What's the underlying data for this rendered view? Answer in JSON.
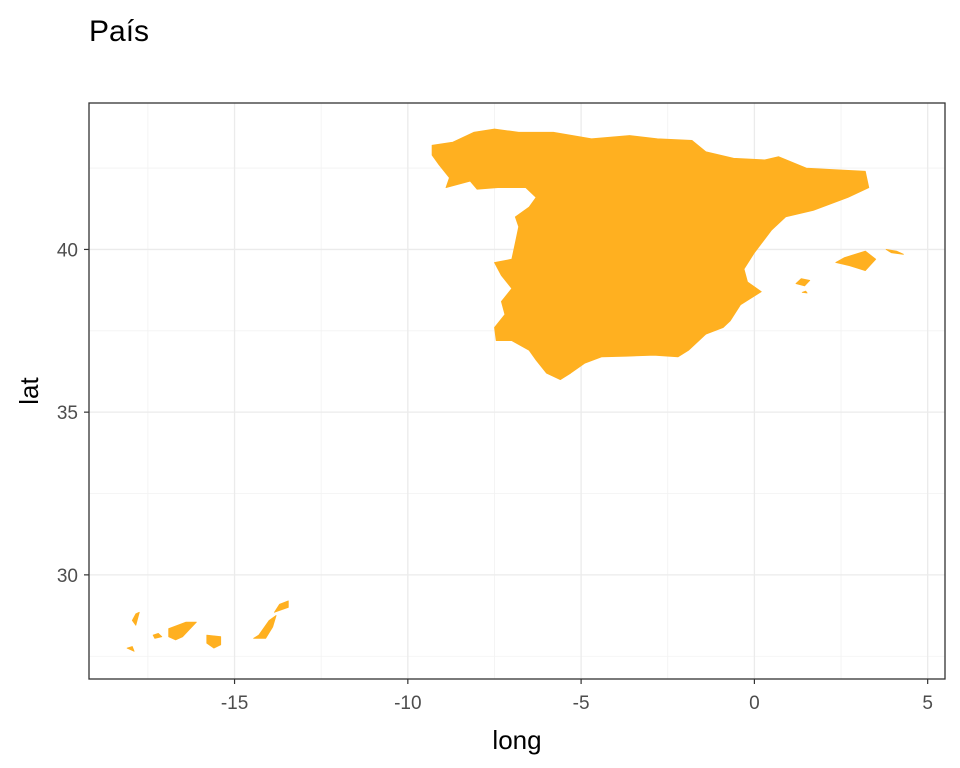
{
  "chart_data": {
    "type": "map",
    "title": "País",
    "xlabel": "long",
    "ylabel": "lat",
    "xlim": [
      -19.2,
      5.5
    ],
    "ylim": [
      26.8,
      44.5
    ],
    "x_ticks": [
      -15,
      -10,
      -5,
      0,
      5
    ],
    "x_tick_labels": [
      "-15",
      "-10",
      "-5",
      "0",
      "5"
    ],
    "y_ticks": [
      30,
      35,
      40
    ],
    "y_tick_labels": [
      "30",
      "35",
      "40"
    ],
    "x_minor_ticks": [
      -17.5,
      -12.5,
      -7.5,
      -2.5,
      2.5
    ],
    "y_minor_ticks": [
      27.5,
      32.5,
      37.5,
      42.5
    ],
    "grid": true,
    "fill_color": "#FFB020",
    "regions": [
      {
        "name": "Spain mainland",
        "coordinates": [
          [
            -9.3,
            43.2
          ],
          [
            -8.7,
            43.3
          ],
          [
            -8.1,
            43.6
          ],
          [
            -7.5,
            43.7
          ],
          [
            -6.8,
            43.6
          ],
          [
            -5.8,
            43.6
          ],
          [
            -4.7,
            43.4
          ],
          [
            -3.6,
            43.5
          ],
          [
            -2.8,
            43.4
          ],
          [
            -1.8,
            43.35
          ],
          [
            -1.4,
            43.0
          ],
          [
            -0.6,
            42.8
          ],
          [
            0.3,
            42.75
          ],
          [
            0.7,
            42.85
          ],
          [
            1.5,
            42.5
          ],
          [
            2.3,
            42.45
          ],
          [
            3.2,
            42.4
          ],
          [
            3.3,
            41.9
          ],
          [
            2.7,
            41.6
          ],
          [
            1.7,
            41.2
          ],
          [
            0.9,
            41.0
          ],
          [
            0.5,
            40.6
          ],
          [
            0.0,
            39.9
          ],
          [
            -0.3,
            39.4
          ],
          [
            -0.2,
            39.0
          ],
          [
            0.2,
            38.7
          ],
          [
            -0.4,
            38.3
          ],
          [
            -0.7,
            37.8
          ],
          [
            -0.9,
            37.6
          ],
          [
            -1.4,
            37.4
          ],
          [
            -1.9,
            36.9
          ],
          [
            -2.2,
            36.7
          ],
          [
            -2.9,
            36.75
          ],
          [
            -3.7,
            36.72
          ],
          [
            -4.4,
            36.7
          ],
          [
            -4.9,
            36.5
          ],
          [
            -5.3,
            36.2
          ],
          [
            -5.6,
            36.0
          ],
          [
            -6.0,
            36.2
          ],
          [
            -6.3,
            36.6
          ],
          [
            -6.5,
            36.9
          ],
          [
            -7.0,
            37.2
          ],
          [
            -7.45,
            37.2
          ],
          [
            -7.5,
            37.6
          ],
          [
            -7.2,
            38.0
          ],
          [
            -7.3,
            38.4
          ],
          [
            -7.0,
            38.8
          ],
          [
            -7.3,
            39.2
          ],
          [
            -7.5,
            39.6
          ],
          [
            -7.0,
            39.7
          ],
          [
            -6.9,
            40.2
          ],
          [
            -6.8,
            40.7
          ],
          [
            -6.9,
            41.0
          ],
          [
            -6.5,
            41.3
          ],
          [
            -6.3,
            41.6
          ],
          [
            -6.6,
            41.9
          ],
          [
            -7.4,
            41.9
          ],
          [
            -8.0,
            41.85
          ],
          [
            -8.2,
            42.1
          ],
          [
            -8.9,
            41.9
          ],
          [
            -8.8,
            42.2
          ],
          [
            -9.1,
            42.6
          ],
          [
            -9.3,
            42.9
          ]
        ]
      },
      {
        "name": "Mallorca",
        "coordinates": [
          [
            2.35,
            39.6
          ],
          [
            2.75,
            39.5
          ],
          [
            3.2,
            39.35
          ],
          [
            3.5,
            39.7
          ],
          [
            3.2,
            39.95
          ],
          [
            2.6,
            39.75
          ]
        ]
      },
      {
        "name": "Menorca",
        "coordinates": [
          [
            3.8,
            40.0
          ],
          [
            4.1,
            39.95
          ],
          [
            4.3,
            39.85
          ],
          [
            3.95,
            39.9
          ]
        ]
      },
      {
        "name": "Ibiza",
        "coordinates": [
          [
            1.2,
            38.95
          ],
          [
            1.45,
            38.88
          ],
          [
            1.6,
            39.05
          ],
          [
            1.35,
            39.1
          ]
        ]
      },
      {
        "name": "Formentera",
        "coordinates": [
          [
            1.38,
            38.68
          ],
          [
            1.52,
            38.66
          ],
          [
            1.48,
            38.72
          ]
        ]
      },
      {
        "name": "Tenerife",
        "coordinates": [
          [
            -16.9,
            28.35
          ],
          [
            -16.4,
            28.55
          ],
          [
            -16.1,
            28.55
          ],
          [
            -16.5,
            28.1
          ],
          [
            -16.7,
            28.0
          ],
          [
            -16.9,
            28.1
          ]
        ]
      },
      {
        "name": "Gran Canaria",
        "coordinates": [
          [
            -15.8,
            28.15
          ],
          [
            -15.4,
            28.1
          ],
          [
            -15.4,
            27.85
          ],
          [
            -15.6,
            27.75
          ],
          [
            -15.8,
            27.9
          ]
        ]
      },
      {
        "name": "Fuerteventura",
        "coordinates": [
          [
            -14.1,
            28.05
          ],
          [
            -13.9,
            28.4
          ],
          [
            -13.8,
            28.75
          ],
          [
            -14.0,
            28.6
          ],
          [
            -14.3,
            28.15
          ],
          [
            -14.45,
            28.05
          ]
        ]
      },
      {
        "name": "Lanzarote",
        "coordinates": [
          [
            -13.85,
            28.85
          ],
          [
            -13.45,
            29.0
          ],
          [
            -13.45,
            29.2
          ],
          [
            -13.7,
            29.1
          ]
        ]
      },
      {
        "name": "La Palma",
        "coordinates": [
          [
            -17.85,
            28.8
          ],
          [
            -17.75,
            28.85
          ],
          [
            -17.85,
            28.45
          ],
          [
            -17.95,
            28.6
          ]
        ]
      },
      {
        "name": "La Gomera",
        "coordinates": [
          [
            -17.3,
            28.05
          ],
          [
            -17.1,
            28.1
          ],
          [
            -17.2,
            28.2
          ],
          [
            -17.35,
            28.15
          ]
        ]
      },
      {
        "name": "El Hierro",
        "coordinates": [
          [
            -18.1,
            27.75
          ],
          [
            -17.9,
            27.65
          ],
          [
            -17.95,
            27.8
          ]
        ]
      }
    ]
  }
}
